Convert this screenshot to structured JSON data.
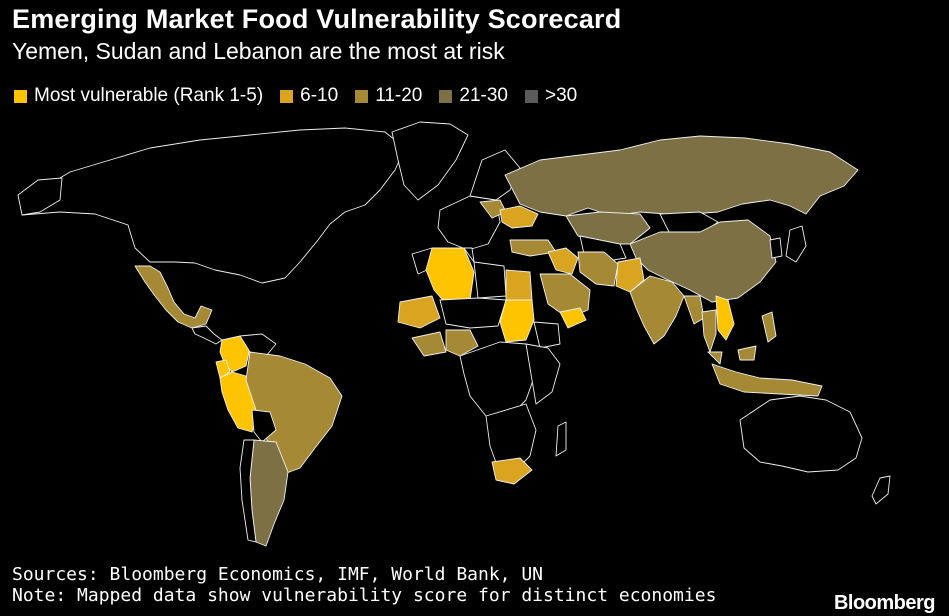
{
  "header": {
    "title": "Emerging Market Food Vulnerability Scorecard",
    "subtitle": "Yemen, Sudan and Lebanon are the most at risk"
  },
  "legend": [
    {
      "label": "Most vulnerable (Rank 1-5)",
      "color": "#ffc400"
    },
    {
      "label": "6-10",
      "color": "#d9a420"
    },
    {
      "label": "11-20",
      "color": "#a68935"
    },
    {
      "label": "21-30",
      "color": "#7d7044"
    },
    {
      "label": ">30",
      "color": "#5b5b5b"
    }
  ],
  "colors": {
    "background": "#000000",
    "no_data": "#000000",
    "border": "#f0f0f0"
  },
  "footer": {
    "source": "Sources: Bloomberg Economics, IMF, World Bank, UN",
    "note": "Note: Mapped data show vulnerability score for distinct economies",
    "brand": "Bloomberg"
  }
}
